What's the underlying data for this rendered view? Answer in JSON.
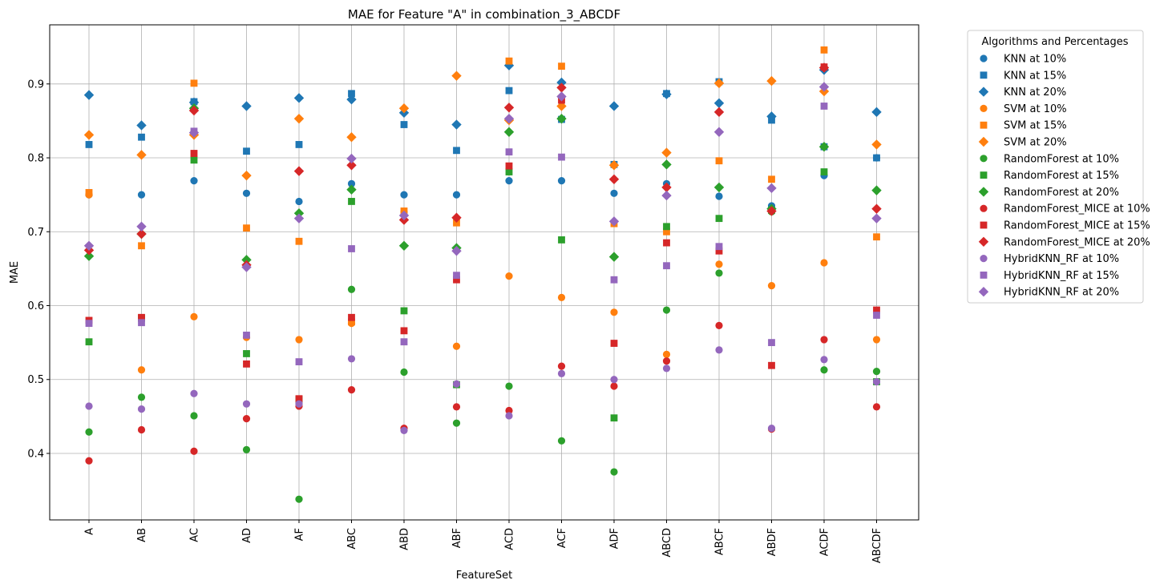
{
  "chart_data": {
    "type": "scatter",
    "title": "MAE for Feature \"A\" in combination_3_ABCDF",
    "xlabel": "FeatureSet",
    "ylabel": "MAE",
    "ylim": [
      0.31,
      0.98
    ],
    "yticks": [
      "0.4",
      "0.5",
      "0.6",
      "0.7",
      "0.8",
      "0.9"
    ],
    "grid": true,
    "legend_title": "Algorithms and Percentages",
    "legend_position": "outside right",
    "categories": [
      "A",
      "AB",
      "AC",
      "AD",
      "AF",
      "ABC",
      "ABD",
      "ABF",
      "ACD",
      "ACF",
      "ADF",
      "ABCD",
      "ABCF",
      "ABDF",
      "ACDF",
      "ABCDF"
    ],
    "series": [
      {
        "name": "KNN at 10%",
        "color": "#1f77b4",
        "marker": "circle",
        "values": [
          0.75,
          0.75,
          0.769,
          0.752,
          0.741,
          0.765,
          0.75,
          0.75,
          0.769,
          0.769,
          0.752,
          0.765,
          0.748,
          0.735,
          0.776,
          0.8
        ]
      },
      {
        "name": "KNN at 15%",
        "color": "#1f77b4",
        "marker": "square",
        "values": [
          0.818,
          0.828,
          0.876,
          0.809,
          0.818,
          0.887,
          0.845,
          0.81,
          0.891,
          0.852,
          0.791,
          0.887,
          0.903,
          0.851,
          0.815,
          0.8
        ]
      },
      {
        "name": "KNN at 20%",
        "color": "#1f77b4",
        "marker": "diamond",
        "values": [
          0.885,
          0.844,
          0.875,
          0.87,
          0.881,
          0.879,
          0.861,
          0.845,
          0.925,
          0.902,
          0.87,
          0.886,
          0.874,
          0.856,
          0.919,
          0.862
        ]
      },
      {
        "name": "SVM at 10%",
        "color": "#ff7f0e",
        "marker": "circle",
        "values": [
          0.75,
          0.513,
          0.585,
          0.557,
          0.554,
          0.576,
          0.727,
          0.545,
          0.64,
          0.611,
          0.591,
          0.534,
          0.656,
          0.627,
          0.658,
          0.554
        ]
      },
      {
        "name": "SVM at 15%",
        "color": "#ff7f0e",
        "marker": "square",
        "values": [
          0.753,
          0.681,
          0.901,
          0.705,
          0.687,
          0.578,
          0.728,
          0.712,
          0.931,
          0.924,
          0.711,
          0.7,
          0.796,
          0.771,
          0.946,
          0.693
        ]
      },
      {
        "name": "SVM at 20%",
        "color": "#ff7f0e",
        "marker": "diamond",
        "values": [
          0.831,
          0.804,
          0.831,
          0.776,
          0.853,
          0.828,
          0.867,
          0.911,
          0.851,
          0.87,
          0.79,
          0.807,
          0.901,
          0.904,
          0.89,
          0.818
        ]
      },
      {
        "name": "RandomForest at 10%",
        "color": "#2ca02c",
        "marker": "circle",
        "values": [
          0.429,
          0.476,
          0.451,
          0.405,
          0.338,
          0.622,
          0.51,
          0.441,
          0.491,
          0.417,
          0.375,
          0.594,
          0.644,
          0.727,
          0.513,
          0.511
        ]
      },
      {
        "name": "RandomForest at 15%",
        "color": "#2ca02c",
        "marker": "square",
        "values": [
          0.551,
          0.583,
          0.797,
          0.535,
          0.473,
          0.741,
          0.593,
          0.493,
          0.781,
          0.689,
          0.448,
          0.707,
          0.718,
          0.729,
          0.781,
          0.497
        ]
      },
      {
        "name": "RandomForest at 20%",
        "color": "#2ca02c",
        "marker": "diamond",
        "values": [
          0.667,
          0.697,
          0.867,
          0.662,
          0.725,
          0.757,
          0.681,
          0.678,
          0.835,
          0.853,
          0.666,
          0.791,
          0.76,
          0.731,
          0.815,
          0.756
        ]
      },
      {
        "name": "RandomForest_MICE at 10%",
        "color": "#d62728",
        "marker": "circle",
        "values": [
          0.39,
          0.432,
          0.403,
          0.447,
          0.464,
          0.486,
          0.434,
          0.463,
          0.458,
          0.518,
          0.491,
          0.525,
          0.573,
          0.433,
          0.554,
          0.463
        ]
      },
      {
        "name": "RandomForest_MICE at 15%",
        "color": "#d62728",
        "marker": "square",
        "values": [
          0.58,
          0.584,
          0.806,
          0.521,
          0.474,
          0.584,
          0.566,
          0.635,
          0.789,
          0.878,
          0.549,
          0.685,
          0.674,
          0.519,
          0.923,
          0.594
        ]
      },
      {
        "name": "RandomForest_MICE at 20%",
        "color": "#d62728",
        "marker": "diamond",
        "values": [
          0.675,
          0.697,
          0.864,
          0.655,
          0.782,
          0.79,
          0.716,
          0.719,
          0.868,
          0.895,
          0.771,
          0.76,
          0.862,
          0.728,
          0.922,
          0.731
        ]
      },
      {
        "name": "HybridKNN_RF at 10%",
        "color": "#9467bd",
        "marker": "circle",
        "values": [
          0.464,
          0.46,
          0.481,
          0.467,
          0.467,
          0.528,
          0.431,
          0.494,
          0.451,
          0.508,
          0.5,
          0.515,
          0.54,
          0.434,
          0.527,
          0.497
        ]
      },
      {
        "name": "HybridKNN_RF at 15%",
        "color": "#9467bd",
        "marker": "square",
        "values": [
          0.576,
          0.577,
          0.836,
          0.56,
          0.524,
          0.677,
          0.551,
          0.641,
          0.808,
          0.801,
          0.635,
          0.654,
          0.68,
          0.55,
          0.87,
          0.587
        ]
      },
      {
        "name": "HybridKNN_RF at 20%",
        "color": "#9467bd",
        "marker": "diamond",
        "values": [
          0.681,
          0.707,
          0.834,
          0.652,
          0.718,
          0.799,
          0.722,
          0.674,
          0.853,
          0.883,
          0.714,
          0.749,
          0.835,
          0.759,
          0.896,
          0.718
        ]
      }
    ]
  }
}
